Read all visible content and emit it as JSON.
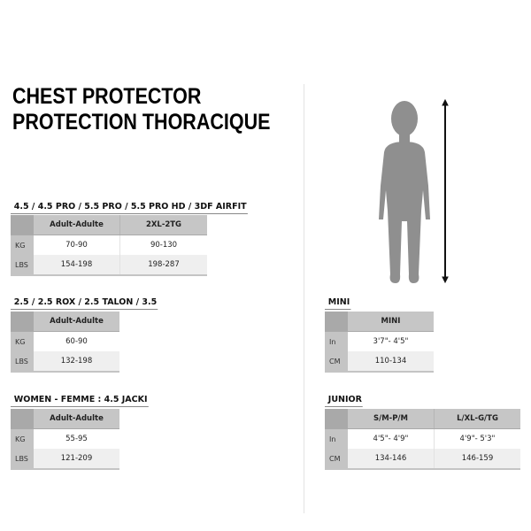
{
  "title": {
    "line1": "CHEST PROTECTOR",
    "line2": "PROTECTION THORACIQUE"
  },
  "tables": [
    {
      "heading": "4.5 / 4.5 PRO / 5.5 PRO / 5.5 PRO HD / 3DF AIRFIT",
      "columns": [
        "Adult-Adulte",
        "2XL-2TG"
      ],
      "rows": [
        {
          "label": "KG",
          "values": [
            "70-90",
            "90-130"
          ]
        },
        {
          "label": "LBS",
          "values": [
            "154-198",
            "198-287"
          ]
        }
      ]
    },
    {
      "heading": "2.5 / 2.5 ROX / 2.5 TALON / 3.5",
      "columns": [
        "Adult-Adulte"
      ],
      "rows": [
        {
          "label": "KG",
          "values": [
            "60-90"
          ]
        },
        {
          "label": "LBS",
          "values": [
            "132-198"
          ]
        }
      ]
    },
    {
      "heading": "WOMEN - FEMME : 4.5 JACKI",
      "columns": [
        "Adult-Adulte"
      ],
      "rows": [
        {
          "label": "KG",
          "values": [
            "55-95"
          ]
        },
        {
          "label": "LBS",
          "values": [
            "121-209"
          ]
        }
      ]
    },
    {
      "heading": "MINI",
      "columns": [
        "MINI"
      ],
      "rows": [
        {
          "label": "In",
          "values": [
            "3'7\"- 4'5\""
          ]
        },
        {
          "label": "CM",
          "values": [
            "110-134"
          ]
        }
      ]
    },
    {
      "heading": "JUNIOR",
      "columns": [
        "S/M-P/M",
        "L/XL-G/TG"
      ],
      "rows": [
        {
          "label": "In",
          "values": [
            "4'5\"- 4'9\"",
            "4'9\"- 5'3\""
          ]
        },
        {
          "label": "CM",
          "values": [
            "134-146",
            "146-159"
          ]
        }
      ]
    }
  ],
  "figure": {
    "icon": "child-silhouette-icon",
    "measure": "height-arrow-icon",
    "color": "#8f8f8f"
  }
}
